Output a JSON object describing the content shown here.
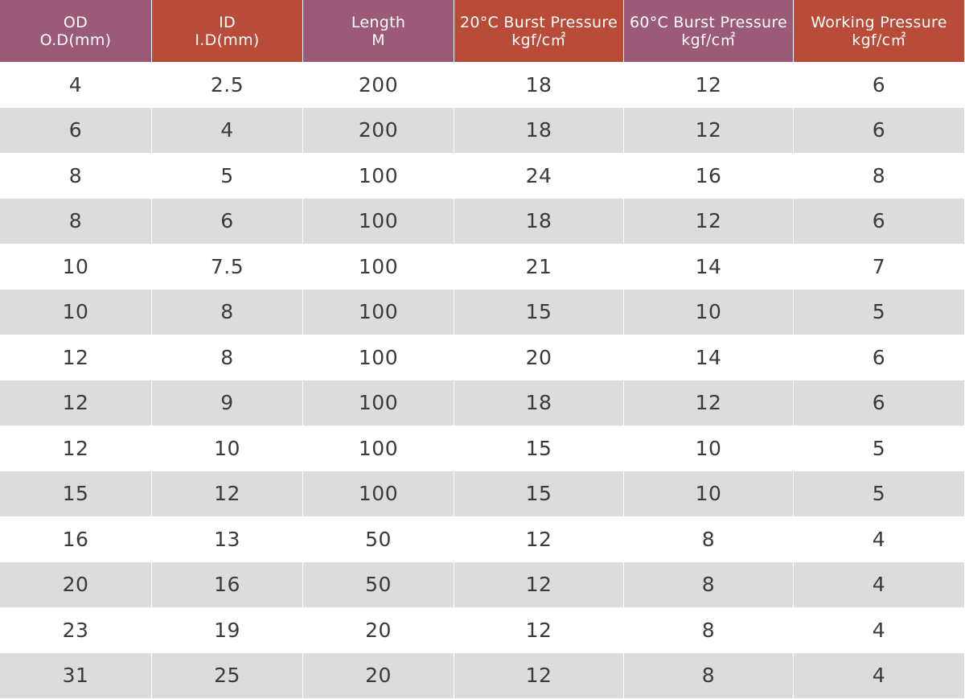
{
  "colors": {
    "header_purple": "#9b5a78",
    "header_red": "#b84c38",
    "row_shaded": "#dcdcdc",
    "row_plain": "#ffffff",
    "cell_text": "#3a3a3a"
  },
  "header": [
    {
      "line1": "OD",
      "line2": "O.D(mm)",
      "color": "#9b5a78"
    },
    {
      "line1": "ID",
      "line2": "I.D(mm)",
      "color": "#b84c38"
    },
    {
      "line1": "Length",
      "line2": "M",
      "color": "#9b5a78"
    },
    {
      "line1": "20°C Burst Pressure",
      "line2": "kgf/c㎡",
      "color": "#b84c38"
    },
    {
      "line1": "60°C Burst Pressure",
      "line2": "kgf/c㎡",
      "color": "#9b5a78"
    },
    {
      "line1": "Working Pressure",
      "line2": "kgf/c㎡",
      "color": "#b84c38"
    }
  ],
  "rows": [
    [
      "4",
      "2.5",
      "200",
      "18",
      "12",
      "6"
    ],
    [
      "6",
      "4",
      "200",
      "18",
      "12",
      "6"
    ],
    [
      "8",
      "5",
      "100",
      "24",
      "16",
      "8"
    ],
    [
      "8",
      "6",
      "100",
      "18",
      "12",
      "6"
    ],
    [
      "10",
      "7.5",
      "100",
      "21",
      "14",
      "7"
    ],
    [
      "10",
      "8",
      "100",
      "15",
      "10",
      "5"
    ],
    [
      "12",
      "8",
      "100",
      "20",
      "14",
      "6"
    ],
    [
      "12",
      "9",
      "100",
      "18",
      "12",
      "6"
    ],
    [
      "12",
      "10",
      "100",
      "15",
      "10",
      "5"
    ],
    [
      "15",
      "12",
      "100",
      "15",
      "10",
      "5"
    ],
    [
      "16",
      "13",
      "50",
      "12",
      "8",
      "4"
    ],
    [
      "20",
      "16",
      "50",
      "12",
      "8",
      "4"
    ],
    [
      "23",
      "19",
      "20",
      "12",
      "8",
      "4"
    ],
    [
      "31",
      "25",
      "20",
      "12",
      "8",
      "4"
    ]
  ]
}
